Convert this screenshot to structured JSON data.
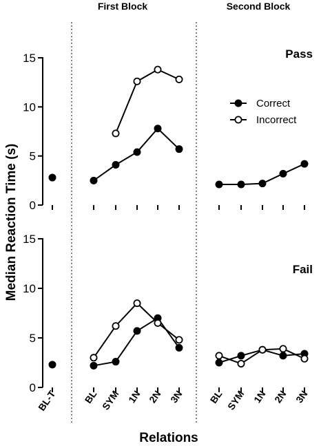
{
  "chart_data": {
    "type": "line",
    "block_titles": [
      "First Block",
      "Second Block"
    ],
    "xlabel": "Relations",
    "ylabel": "Median Reaction Time (s)",
    "ylim": [
      0,
      15
    ],
    "yticks": [
      0,
      5,
      10,
      15
    ],
    "x_groups": [
      {
        "block": "baseline",
        "categories": [
          "BL-T"
        ]
      },
      {
        "block": "First Block",
        "categories": [
          "BL",
          "SYM",
          "1N",
          "2N",
          "3N"
        ]
      },
      {
        "block": "Second Block",
        "categories": [
          "BL",
          "SYM",
          "1N",
          "2N",
          "3N"
        ]
      }
    ],
    "legend": {
      "entries": [
        "Correct",
        "Incorrect"
      ],
      "placement": "top-right of top panel"
    },
    "panels": [
      {
        "label": "Pass",
        "series": [
          {
            "name": "Correct",
            "marker": "filled",
            "baseline": [
              2.8
            ],
            "first_block": [
              2.5,
              4.1,
              5.4,
              7.8,
              5.7
            ],
            "second_block": [
              2.1,
              2.1,
              2.2,
              3.2,
              4.2
            ]
          },
          {
            "name": "Incorrect",
            "marker": "open",
            "baseline": [
              null
            ],
            "first_block": [
              null,
              7.3,
              12.6,
              13.8,
              12.8
            ],
            "second_block": [
              null,
              null,
              null,
              null,
              null
            ]
          }
        ]
      },
      {
        "label": "Fail",
        "series": [
          {
            "name": "Correct",
            "marker": "filled",
            "baseline": [
              2.3
            ],
            "first_block": [
              2.2,
              2.6,
              5.7,
              7.0,
              4.0
            ],
            "second_block": [
              2.5,
              3.2,
              3.8,
              3.2,
              3.4
            ]
          },
          {
            "name": "Incorrect",
            "marker": "open",
            "baseline": [
              null
            ],
            "first_block": [
              3.0,
              6.2,
              8.5,
              6.5,
              4.8
            ],
            "second_block": [
              3.2,
              2.4,
              3.8,
              3.9,
              2.9
            ]
          }
        ]
      }
    ]
  }
}
